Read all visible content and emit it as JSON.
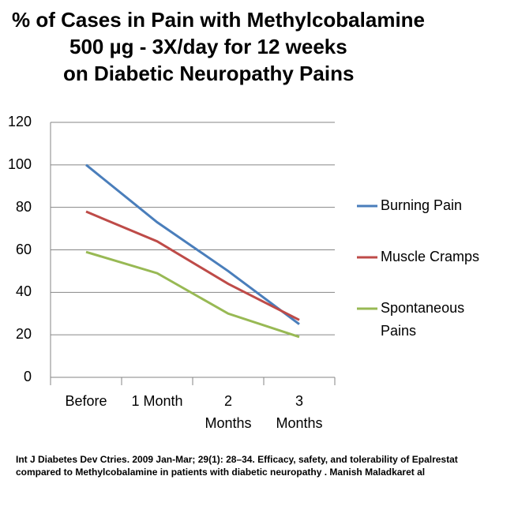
{
  "chart_data": {
    "type": "line",
    "title": [
      "% of Cases in Pain with  Methylcobalamine",
      "500 µg - 3X/day for 12 weeks",
      "on Diabetic Neuropathy Pains"
    ],
    "categories": [
      "Before",
      "1 Month",
      "2 Months",
      "3 Months"
    ],
    "series": [
      {
        "name": "Burning Pain",
        "color": "#4a7ebb",
        "values": [
          100,
          73,
          50,
          25
        ]
      },
      {
        "name": "Muscle Cramps",
        "color": "#be4b48",
        "values": [
          78,
          64,
          44,
          27
        ]
      },
      {
        "name": "Spontaneous Pains",
        "color": "#98b954",
        "values": [
          59,
          49,
          30,
          19
        ]
      }
    ],
    "ylim": [
      0,
      120
    ],
    "yticks": [
      0,
      20,
      40,
      60,
      80,
      100,
      120
    ],
    "grid": true,
    "legend": "right",
    "footnote": "Int J Diabetes Dev Ctries. 2009 Jan-Mar; 29(1): 28–34. Efficacy, safety, and tolerability of Epalrestat compared to Methylcobalamine in patients with diabetic neuropathy . Manish Maladkaret al"
  }
}
